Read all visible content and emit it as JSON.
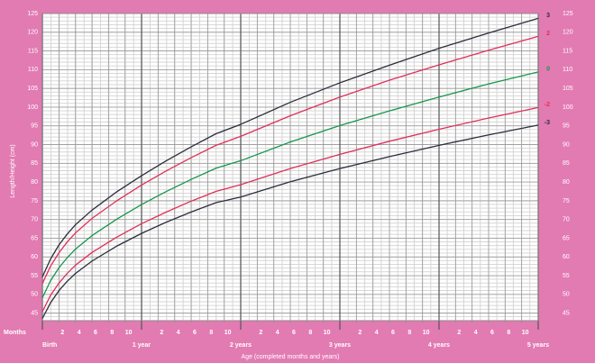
{
  "chart_data": {
    "type": "line",
    "y_label": "Length/Height (cm)",
    "x_label": "Age (completed months and years)",
    "x_unit_label": "Months",
    "x": [
      0,
      1,
      2,
      3,
      4,
      6,
      9,
      12,
      15,
      18,
      21,
      24,
      30,
      36,
      42,
      48,
      54,
      60
    ],
    "series": [
      {
        "name": "3",
        "color": "#2d2d3c",
        "values": [
          54.7,
          59.5,
          63.2,
          66.1,
          68.6,
          72.5,
          77.4,
          81.7,
          85.7,
          89.4,
          92.9,
          95.4,
          101.3,
          106.5,
          111.2,
          115.7,
          119.8,
          123.7
        ]
      },
      {
        "name": "2",
        "color": "#e0305a",
        "values": [
          52.9,
          57.6,
          61.1,
          64.0,
          66.4,
          70.3,
          75.0,
          79.2,
          83.0,
          86.5,
          89.8,
          92.2,
          97.7,
          102.7,
          107.2,
          111.3,
          115.2,
          118.9
        ]
      },
      {
        "name": "0",
        "color": "#16964c",
        "values": [
          49.1,
          53.7,
          57.1,
          59.8,
          62.1,
          65.7,
          70.1,
          74.0,
          77.5,
          80.7,
          83.7,
          85.7,
          90.7,
          95.1,
          99.0,
          102.7,
          106.2,
          109.4
        ]
      },
      {
        "name": "-2",
        "color": "#e0305a",
        "values": [
          45.4,
          49.8,
          53.0,
          55.6,
          57.8,
          61.2,
          65.3,
          68.9,
          72.0,
          74.9,
          77.5,
          79.3,
          83.6,
          87.4,
          90.9,
          94.1,
          97.1,
          99.9
        ]
      },
      {
        "name": "-3",
        "color": "#2d2d3c",
        "values": [
          43.6,
          47.8,
          51.0,
          53.5,
          55.6,
          58.9,
          62.9,
          66.3,
          69.3,
          72.0,
          74.5,
          76.0,
          80.1,
          83.6,
          86.8,
          89.8,
          92.6,
          95.2
        ]
      }
    ],
    "xlim": [
      0,
      60
    ],
    "ylim": [
      43,
      125
    ],
    "yticks": [
      45,
      50,
      55,
      60,
      65,
      70,
      75,
      80,
      85,
      90,
      95,
      100,
      105,
      110,
      115,
      120,
      125
    ],
    "xticks": [
      {
        "value": 0,
        "label": "Birth"
      },
      2,
      4,
      6,
      8,
      10,
      {
        "value": 12,
        "label": "1 year"
      },
      {
        "value": 14,
        "label": "2"
      },
      {
        "value": 16,
        "label": "4"
      },
      {
        "value": 18,
        "label": "6"
      },
      {
        "value": 20,
        "label": "8"
      },
      {
        "value": 22,
        "label": "10"
      },
      {
        "value": 24,
        "label": "2 years"
      },
      {
        "value": 26,
        "label": "2"
      },
      {
        "value": 28,
        "label": "4"
      },
      {
        "value": 30,
        "label": "6"
      },
      {
        "value": 32,
        "label": "8"
      },
      {
        "value": 34,
        "label": "10"
      },
      {
        "value": 36,
        "label": "3 years"
      },
      {
        "value": 38,
        "label": "2"
      },
      {
        "value": 40,
        "label": "4"
      },
      {
        "value": 42,
        "label": "6"
      },
      {
        "value": 44,
        "label": "8"
      },
      {
        "value": 46,
        "label": "10"
      },
      {
        "value": 48,
        "label": "4 years"
      },
      {
        "value": 50,
        "label": "2"
      },
      {
        "value": 52,
        "label": "4"
      },
      {
        "value": 54,
        "label": "6"
      },
      {
        "value": 56,
        "label": "8"
      },
      {
        "value": 58,
        "label": "10"
      },
      {
        "value": 60,
        "label": "5 years"
      }
    ],
    "grid": true
  }
}
